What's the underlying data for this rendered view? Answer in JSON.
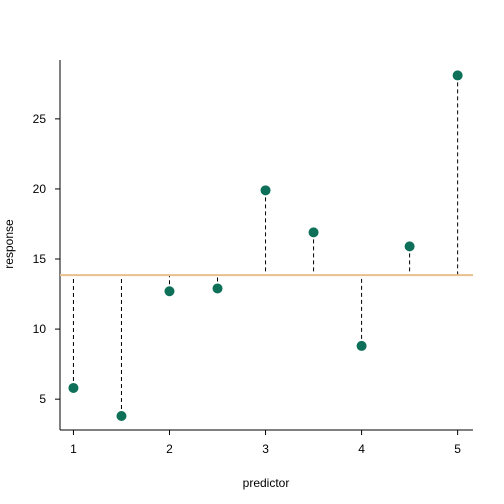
{
  "chart_data": {
    "type": "scatter",
    "title": "",
    "xlabel": "predictor",
    "ylabel": "response",
    "x_ticks": [
      1,
      2,
      3,
      4,
      5
    ],
    "y_ticks": [
      5,
      10,
      15,
      20,
      25
    ],
    "x_tick_labels": [
      "1",
      "2",
      "3",
      "4",
      "5"
    ],
    "y_tick_labels": [
      "5",
      "10",
      "15",
      "20",
      "25"
    ],
    "xlim": [
      0.86,
      5.16
    ],
    "ylim": [
      2.8,
      29.2
    ],
    "grid": false,
    "reference_line": {
      "y": 13.85,
      "color": "#e8c08e"
    },
    "point_color": "#0e7058",
    "residual_style": "dashed",
    "x": [
      1,
      1.5,
      2,
      2.5,
      3,
      3.5,
      4,
      4.5,
      5
    ],
    "y": [
      5.8,
      3.8,
      12.7,
      12.9,
      19.9,
      16.9,
      8.8,
      15.9,
      28.1
    ]
  }
}
